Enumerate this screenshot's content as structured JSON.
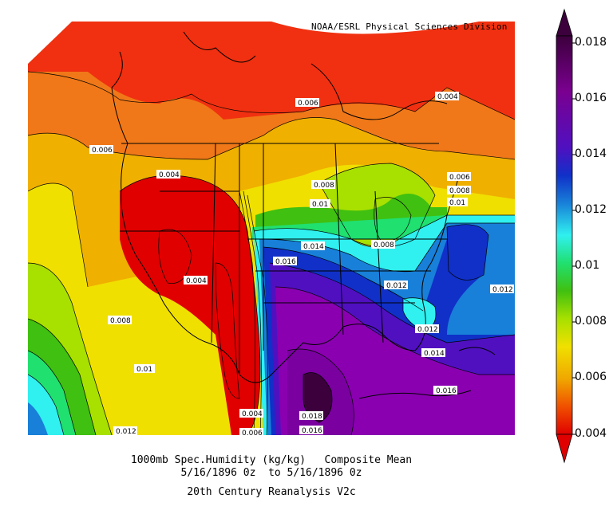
{
  "credit": "NOAA/ESRL Physical Sciences Division",
  "caption": {
    "line1": "1000mb Spec.Humidity (kg/kg)   Composite Mean",
    "line2": "5/16/1896 0z  to 5/16/1896 0z",
    "line3": "20th Century Reanalysis V2c"
  },
  "colorbar": {
    "labels": [
      "0.018",
      "0.016",
      "0.014",
      "0.012",
      "0.01",
      "0.008",
      "0.006",
      "0.004"
    ],
    "colors": [
      "#4a0050",
      "#8a00a8",
      "#6a10c8",
      "#2050d0",
      "#1e90e0",
      "#40f0f0",
      "#20e080",
      "#50d010",
      "#b0e000",
      "#f0e000",
      "#f0c000",
      "#f08000",
      "#f04000",
      "#e00000"
    ]
  },
  "contour_labels": [
    "0.006",
    "0.004",
    "0.006",
    "0.004",
    "0.008",
    "0.01",
    "0.006",
    "0.008",
    "0.01",
    "0.014",
    "0.016",
    "0.008",
    "0.004",
    "0.012",
    "0.012",
    "0.008",
    "0.012",
    "0.014",
    "0.01",
    "0.016",
    "0.004",
    "0.018",
    "0.012",
    "0.006",
    "0.016"
  ]
}
